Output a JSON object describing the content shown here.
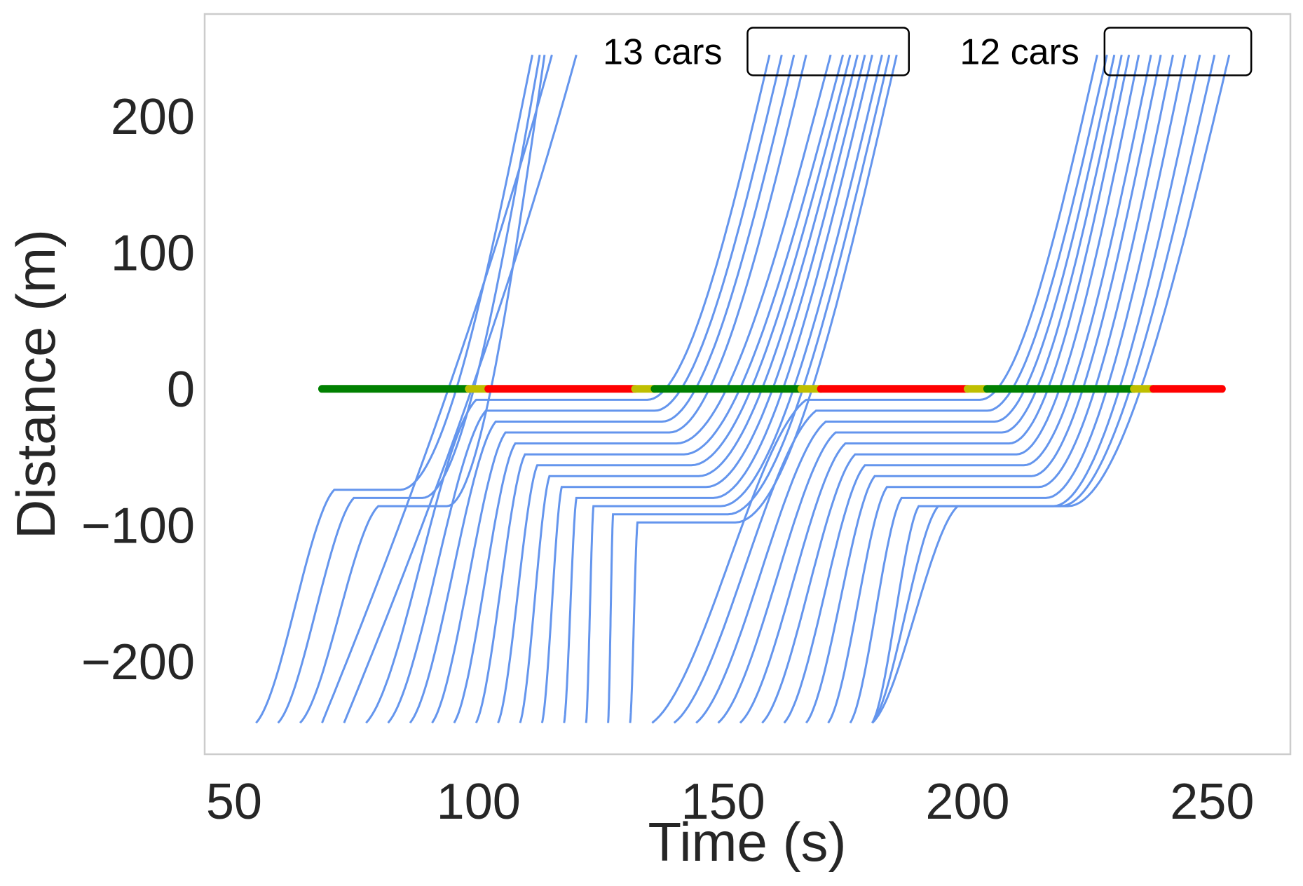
{
  "chart_data": {
    "type": "line",
    "title": "",
    "xlabel": "Time (s)",
    "ylabel": "Distance (m)",
    "xlim": [
      44,
      266
    ],
    "ylim": [
      -268,
      275
    ],
    "xticks": [
      50,
      100,
      150,
      200,
      250
    ],
    "yticks": [
      -200,
      -100,
      0,
      100,
      200
    ],
    "xtick_labels": [
      "50",
      "100",
      "150",
      "200",
      "250"
    ],
    "ytick_labels": [
      "−200",
      "−100",
      "0",
      "100",
      "200"
    ],
    "grid": false,
    "line_color": "#6495ED",
    "signal_colors": {
      "green": "#008000",
      "yellow": "#BFBF00",
      "red": "#FF0000"
    },
    "signal_phases": [
      {
        "state": "green",
        "t_start": 68,
        "t_end": 98
      },
      {
        "state": "yellow",
        "t_start": 98,
        "t_end": 102
      },
      {
        "state": "red",
        "t_start": 102,
        "t_end": 132
      },
      {
        "state": "yellow",
        "t_start": 132,
        "t_end": 136
      },
      {
        "state": "green",
        "t_start": 136,
        "t_end": 166
      },
      {
        "state": "yellow",
        "t_start": 166,
        "t_end": 170
      },
      {
        "state": "red",
        "t_start": 170,
        "t_end": 200
      },
      {
        "state": "yellow",
        "t_start": 200,
        "t_end": 204
      },
      {
        "state": "green",
        "t_start": 204,
        "t_end": 234
      },
      {
        "state": "yellow",
        "t_start": 234,
        "t_end": 238
      },
      {
        "state": "red",
        "t_start": 238,
        "t_end": 252
      }
    ],
    "annotations": [
      {
        "text": "13 cars",
        "box_x": [
          155,
          188
        ],
        "box_y": [
          230,
          265
        ]
      },
      {
        "text": "12 cars",
        "box_x": [
          228,
          258
        ],
        "box_y": [
          230,
          265
        ]
      }
    ],
    "vehicles": [
      {
        "t_entry": 54.5,
        "t_stop": 70.5,
        "stop_pos": -74,
        "t_release": 84.0,
        "t_exit": 111.0
      },
      {
        "t_entry": 59.0,
        "t_stop": 74.5,
        "stop_pos": -80,
        "t_release": 88.5,
        "t_exit": 112.5
      },
      {
        "t_entry": 63.5,
        "t_stop": 79.5,
        "stop_pos": -86,
        "t_release": 93.5,
        "t_exit": 113.5
      },
      {
        "t_entry": 68.0,
        "t_stop": null,
        "stop_pos": null,
        "t_release": null,
        "t_exit": 115.0
      },
      {
        "t_entry": 72.5,
        "t_stop": null,
        "stop_pos": null,
        "t_release": null,
        "t_exit": 120.0
      },
      {
        "t_entry": 77.0,
        "t_stop": 99.5,
        "stop_pos": -8,
        "t_release": 134.5,
        "t_exit": 159.5
      },
      {
        "t_entry": 81.5,
        "t_stop": 101.5,
        "stop_pos": -16,
        "t_release": 136.0,
        "t_exit": 162.0
      },
      {
        "t_entry": 86.0,
        "t_stop": 103.5,
        "stop_pos": -24,
        "t_release": 137.5,
        "t_exit": 164.5
      },
      {
        "t_entry": 90.5,
        "t_stop": 105.5,
        "stop_pos": -32,
        "t_release": 139.0,
        "t_exit": 167.0
      },
      {
        "t_entry": 95.0,
        "t_stop": 107.5,
        "stop_pos": -40,
        "t_release": 140.5,
        "t_exit": 172.0
      },
      {
        "t_entry": 99.5,
        "t_stop": 109.5,
        "stop_pos": -48,
        "t_release": 142.0,
        "t_exit": 174.5
      },
      {
        "t_entry": 104.0,
        "t_stop": 112.0,
        "stop_pos": -56,
        "t_release": 143.5,
        "t_exit": 176.0
      },
      {
        "t_entry": 108.5,
        "t_stop": 114.5,
        "stop_pos": -64,
        "t_release": 145.0,
        "t_exit": 177.5
      },
      {
        "t_entry": 113.0,
        "t_stop": 117.0,
        "stop_pos": -72,
        "t_release": 146.5,
        "t_exit": 179.0
      },
      {
        "t_entry": 117.5,
        "t_stop": 120.0,
        "stop_pos": -80,
        "t_release": 148.0,
        "t_exit": 180.5
      },
      {
        "t_entry": 122.0,
        "t_stop": 123.5,
        "stop_pos": -86,
        "t_release": 149.5,
        "t_exit": 182.5
      },
      {
        "t_entry": 126.5,
        "t_stop": 127.5,
        "stop_pos": -92,
        "t_release": 151.0,
        "t_exit": 184.0
      },
      {
        "t_entry": 131.0,
        "t_stop": 132.5,
        "stop_pos": -98,
        "t_release": 152.5,
        "t_exit": 185.5
      },
      {
        "t_entry": 135.5,
        "t_stop": 167.0,
        "stop_pos": -8,
        "t_release": 202.5,
        "t_exit": 226.5
      },
      {
        "t_entry": 140.0,
        "t_stop": 169.0,
        "stop_pos": -16,
        "t_release": 204.0,
        "t_exit": 228.5
      },
      {
        "t_entry": 144.5,
        "t_stop": 171.0,
        "stop_pos": -24,
        "t_release": 205.5,
        "t_exit": 230.0
      },
      {
        "t_entry": 149.0,
        "t_stop": 173.0,
        "stop_pos": -32,
        "t_release": 207.0,
        "t_exit": 231.5
      },
      {
        "t_entry": 153.5,
        "t_stop": 175.0,
        "stop_pos": -40,
        "t_release": 208.5,
        "t_exit": 233.0
      },
      {
        "t_entry": 158.0,
        "t_stop": 177.0,
        "stop_pos": -48,
        "t_release": 210.0,
        "t_exit": 235.0
      },
      {
        "t_entry": 162.5,
        "t_stop": 179.0,
        "stop_pos": -56,
        "t_release": 211.5,
        "t_exit": 237.5
      },
      {
        "t_entry": 167.0,
        "t_stop": 181.0,
        "stop_pos": -64,
        "t_release": 213.0,
        "t_exit": 239.5
      },
      {
        "t_entry": 171.5,
        "t_stop": 183.5,
        "stop_pos": -72,
        "t_release": 214.5,
        "t_exit": 242.0
      },
      {
        "t_entry": 176.0,
        "t_stop": 186.5,
        "stop_pos": -80,
        "t_release": 216.0,
        "t_exit": 244.5
      },
      {
        "t_entry": 180.5,
        "t_stop": 190.0,
        "stop_pos": -86,
        "t_release": 217.5,
        "t_exit": 247.5
      },
      {
        "t_entry": 180.5,
        "t_stop": 194.0,
        "stop_pos": -86,
        "t_release": 219.0,
        "t_exit": 250.5
      },
      {
        "t_entry": 180.5,
        "t_stop": 198.0,
        "stop_pos": -86,
        "t_release": 220.5,
        "t_exit": 253.5
      }
    ]
  }
}
